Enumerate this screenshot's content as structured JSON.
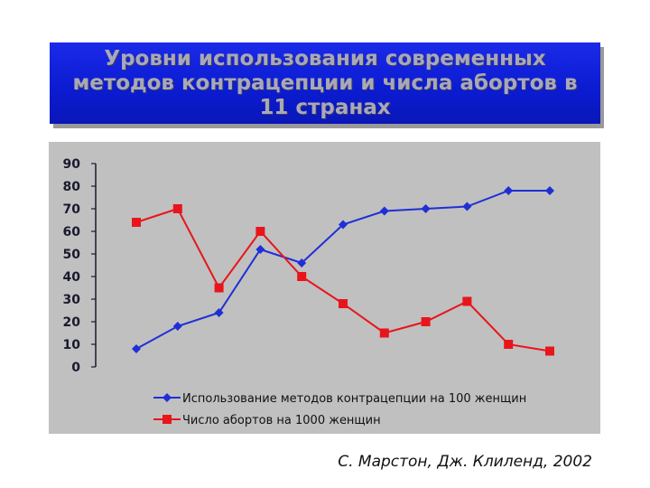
{
  "title": "Уровни использования современных методов контрацепции и числа абортов в 11 странах",
  "credit": "С. Марстон, Дж. Клиленд, 2002",
  "colors": {
    "title_bg": "#1329e0",
    "title_text": "#a8a8b8",
    "plot_bg": "#c0c0c0",
    "series1": "#1f2fd6",
    "series2": "#e8151b"
  },
  "chart_data": {
    "type": "line",
    "x": [
      1,
      2,
      3,
      4,
      5,
      6,
      7,
      8,
      9,
      10,
      11
    ],
    "ylim": [
      0,
      90
    ],
    "yticks": [
      0,
      10,
      20,
      30,
      40,
      50,
      60,
      70,
      80,
      90
    ],
    "grid": false,
    "legend_position": "bottom",
    "series": [
      {
        "name": "Использование методов контрацепции на 100 женщин",
        "marker": "diamond",
        "color": "#1f2fd6",
        "values": [
          8,
          18,
          24,
          52,
          46,
          63,
          69,
          70,
          71,
          78,
          78
        ]
      },
      {
        "name": "Число абортов на 1000 женщин",
        "marker": "square",
        "color": "#e8151b",
        "values": [
          64,
          70,
          35,
          60,
          40,
          28,
          15,
          20,
          29,
          10,
          7
        ]
      }
    ]
  }
}
